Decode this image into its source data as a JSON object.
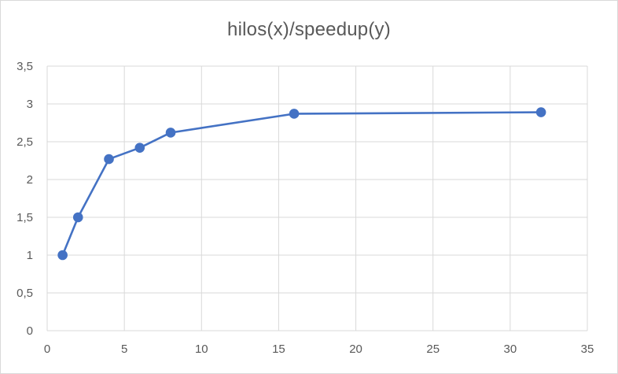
{
  "chart_data": {
    "type": "scatter",
    "title": "hilos(x)/speedup(y)",
    "xlabel": "",
    "ylabel": "",
    "xlim": [
      0,
      35
    ],
    "ylim": [
      0,
      3.5
    ],
    "x_ticks": [
      0,
      5,
      10,
      15,
      20,
      25,
      30,
      35
    ],
    "y_ticks": [
      0,
      0.5,
      1,
      1.5,
      2,
      2.5,
      3,
      3.5
    ],
    "x_tick_labels": [
      "0",
      "5",
      "10",
      "15",
      "20",
      "25",
      "30",
      "35"
    ],
    "y_tick_labels": [
      "0",
      "0,5",
      "1",
      "1,5",
      "2",
      "2,5",
      "3",
      "3,5"
    ],
    "grid": true,
    "legend": "none",
    "lines": true,
    "markers": true,
    "series": [
      {
        "x": [
          1,
          2,
          4,
          6,
          8,
          16,
          32
        ],
        "y": [
          1.0,
          1.5,
          2.27,
          2.42,
          2.62,
          2.87,
          2.89
        ],
        "color": "#4472c4"
      }
    ]
  }
}
